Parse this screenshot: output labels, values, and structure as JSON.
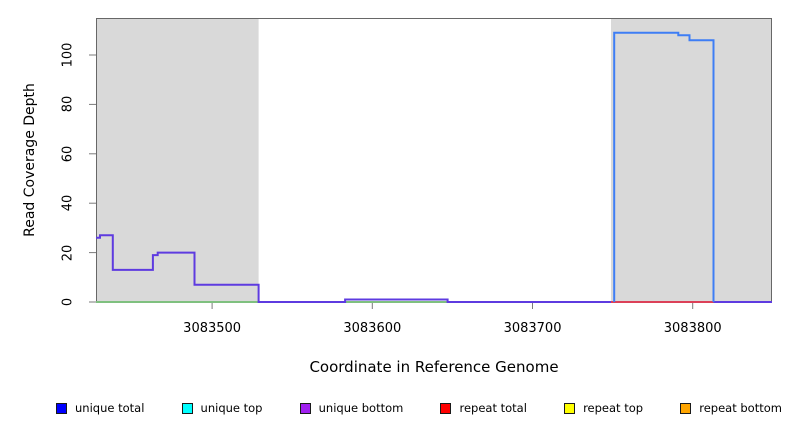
{
  "figure": {
    "background": "#ffffff",
    "shade_color": "#d9d9d9",
    "box_color": "#676767",
    "tick_color": "#7a7a7a",
    "text_color": "#000000"
  },
  "chart_data": {
    "type": "line",
    "title": "",
    "xlabel": "Coordinate in Reference Genome",
    "ylabel": "Read Coverage Depth",
    "xlim": [
      3083427.5,
      3083849.5
    ],
    "ylim": [
      0,
      115
    ],
    "x_ticks": [
      3083500,
      3083600,
      3083700,
      3083800
    ],
    "y_ticks": [
      0,
      20,
      40,
      60,
      80,
      100
    ],
    "grid": false,
    "shaded_regions": [
      {
        "x0": 3083427.5,
        "x1": 3083529,
        "note": "left repeat-masked region"
      },
      {
        "x0": 3083749,
        "x1": 3083849.5,
        "note": "right repeat-masked region"
      }
    ],
    "series": [
      {
        "name": "green-baseline",
        "color": "#7fc07f",
        "start_at_zero": false,
        "end_at_zero": false,
        "runs": [
          [
            3083427.5,
            3083647,
            0
          ]
        ]
      },
      {
        "name": "unique-coverage-left",
        "color": "#5e3be0",
        "start_at_zero": false,
        "end_at_zero": false,
        "runs": [
          [
            3083427.5,
            3083430,
            26
          ],
          [
            3083430,
            3083438,
            27
          ],
          [
            3083438,
            3083463,
            13
          ],
          [
            3083463,
            3083466,
            19
          ],
          [
            3083466,
            3083489,
            20
          ],
          [
            3083489,
            3083529,
            7
          ],
          [
            3083529,
            3083583,
            0
          ],
          [
            3083583,
            3083647,
            1
          ],
          [
            3083647,
            3083849.5,
            0
          ]
        ]
      },
      {
        "name": "repeat-baseline",
        "color": "#dc4058",
        "start_at_zero": false,
        "end_at_zero": false,
        "runs": [
          [
            3083749,
            3083813,
            0
          ]
        ]
      },
      {
        "name": "unique-coverage-right",
        "color": "#3e7ef5",
        "start_at_zero": true,
        "end_at_zero": true,
        "runs": [
          [
            3083751,
            3083791,
            109
          ],
          [
            3083791,
            3083798,
            108
          ],
          [
            3083798,
            3083813,
            106
          ]
        ]
      }
    ],
    "legend": [
      {
        "label": "unique total",
        "color": "#0000ff"
      },
      {
        "label": "unique top",
        "color": "#00ffff"
      },
      {
        "label": "unique bottom",
        "color": "#a020f0"
      },
      {
        "label": "repeat total",
        "color": "#ff0000"
      },
      {
        "label": "repeat top",
        "color": "#ffff00"
      },
      {
        "label": "repeat bottom",
        "color": "#ffa500"
      }
    ],
    "legend_position": "bottom"
  }
}
